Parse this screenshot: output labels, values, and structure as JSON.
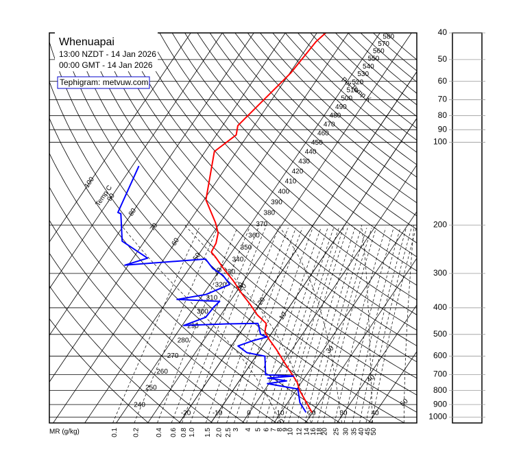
{
  "chart_data": {
    "type": "tephigram",
    "title": "Whenuapai",
    "subtitle": [
      "13:00 NZDT - 14 Jan 2026",
      "00:00 GMT - 14 Jan 2026"
    ],
    "source": "Tephigram: metvuw.com",
    "ylim": [
      1050,
      40
    ],
    "log_y": true,
    "yticks": [
      40,
      50,
      60,
      70,
      80,
      90,
      100,
      200,
      300,
      400,
      500,
      600,
      700,
      800,
      900,
      1000
    ],
    "isotherms": {
      "label": "Temp C",
      "values": [
        -100,
        -90,
        -80,
        -70,
        -60,
        -50,
        -40,
        -30,
        -20,
        -10
      ]
    },
    "isotherm_labels_bottom": [
      -20,
      -10,
      0,
      10,
      20,
      30,
      40
    ],
    "isentropes": {
      "label": "Pot Temp K",
      "values": [
        240,
        250,
        260,
        270,
        280,
        290,
        300,
        310,
        320,
        330,
        340,
        350,
        360,
        370,
        380,
        390,
        400,
        410,
        420,
        430,
        440,
        450,
        460,
        470,
        480,
        490,
        500,
        510,
        520,
        530,
        540,
        550,
        560,
        570,
        580,
        590
      ]
    },
    "saturated_adiabats": [
      10,
      20,
      30,
      40,
      50
    ],
    "mixing_ratio": {
      "label": "MR (g/kg)",
      "values": [
        0.1,
        0.2,
        0.4,
        0.6,
        0.8,
        {
          "value": 1,
          "label": "1.0"
        },
        1.5,
        {
          "value": 2,
          "label": "2.0"
        },
        2.5,
        3,
        4,
        5,
        6,
        7,
        8,
        9,
        10,
        12,
        14,
        16,
        18,
        20,
        25,
        30,
        35,
        40,
        45,
        50
      ]
    },
    "series": [
      {
        "color": "#ff0000",
        "p": [
          961,
          871,
          800,
          746,
          693,
          636,
          567,
          520,
          491,
          456,
          425,
          390,
          354,
          319,
          288,
          261,
          251,
          233,
          214,
          196,
          162,
          108,
          94,
          87,
          56,
          43,
          40
        ],
        "values": [
          19.8,
          15.2,
          11.2,
          8.6,
          4.9,
          0.6,
          -5.0,
          -9.6,
          -12.3,
          -13.8,
          -18.4,
          -22.8,
          -28.1,
          -33.4,
          -39.1,
          -44.2,
          -46.5,
          -46.9,
          -48.4,
          -51.5,
          -59.4,
          -67.1,
          -63.7,
          -65.2,
          -59.7,
          -58.4,
          -57.2
        ]
      },
      {
        "color": "#0000ff",
        "p": [
          961,
          886,
          790,
          755,
          738,
          721,
          709,
          701,
          600,
          583,
          551,
          526,
          511,
          500,
          456,
          458,
          464,
          433,
          397,
          379,
          373,
          358,
          329,
          305,
          288,
          266,
          280,
          264,
          229,
          182,
          180,
          122
        ],
        "values": [
          17.9,
          13.9,
          10.3,
          -0.5,
          5.0,
          -1.6,
          6.2,
          -3.0,
          -7.2,
          -13.6,
          -17.9,
          -14.1,
          -10.7,
          -13.2,
          -16.4,
          -26.3,
          -39.5,
          -34.3,
          -33.9,
          -33.3,
          -47.2,
          -39.1,
          -33.7,
          -37.8,
          -42.5,
          -46.8,
          -71.1,
          -65.4,
          -77.1,
          -83.4,
          -84.6,
          -87.9
        ]
      }
    ]
  }
}
